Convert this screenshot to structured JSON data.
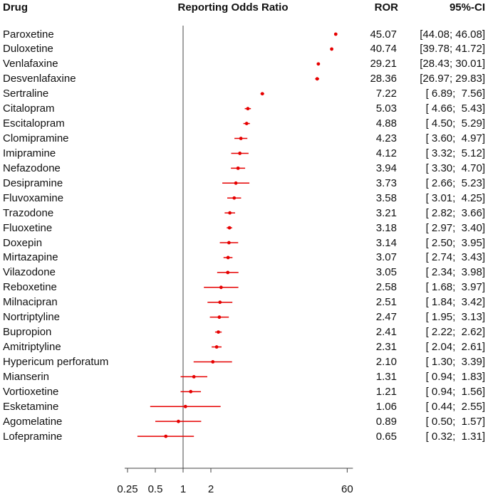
{
  "header": {
    "drug": "Drug",
    "plot": "Reporting Odds Ratio",
    "ror": "ROR",
    "ci": "95%-CI"
  },
  "chart_data": {
    "type": "scatter",
    "subtype": "forest-plot",
    "x_scale": "log",
    "xlim": [
      0.25,
      60
    ],
    "reference_line": 1,
    "marker_color": "#e60000",
    "axis_color": "#444444",
    "x_ticks": [
      {
        "value": 0.25,
        "label": "0.25"
      },
      {
        "value": 0.5,
        "label": "0.5"
      },
      {
        "value": 1,
        "label": "1"
      },
      {
        "value": 2,
        "label": "2"
      },
      {
        "value": 60,
        "label": "60"
      }
    ],
    "rows": [
      {
        "drug": "Paroxetine",
        "ror": 45.07,
        "low": 44.08,
        "high": 46.08,
        "ror_label": "45.07",
        "ci_label": "[44.08; 46.08]"
      },
      {
        "drug": "Duloxetine",
        "ror": 40.74,
        "low": 39.78,
        "high": 41.72,
        "ror_label": "40.74",
        "ci_label": "[39.78; 41.72]"
      },
      {
        "drug": "Venlafaxine",
        "ror": 29.21,
        "low": 28.43,
        "high": 30.01,
        "ror_label": "29.21",
        "ci_label": "[28.43; 30.01]"
      },
      {
        "drug": "Desvenlafaxine",
        "ror": 28.36,
        "low": 26.97,
        "high": 29.83,
        "ror_label": "28.36",
        "ci_label": "[26.97; 29.83]"
      },
      {
        "drug": "Sertraline",
        "ror": 7.22,
        "low": 6.89,
        "high": 7.56,
        "ror_label": "7.22",
        "ci_label": "[ 6.89;  7.56]"
      },
      {
        "drug": "Citalopram",
        "ror": 5.03,
        "low": 4.66,
        "high": 5.43,
        "ror_label": "5.03",
        "ci_label": "[ 4.66;  5.43]"
      },
      {
        "drug": "Escitalopram",
        "ror": 4.88,
        "low": 4.5,
        "high": 5.29,
        "ror_label": "4.88",
        "ci_label": "[ 4.50;  5.29]"
      },
      {
        "drug": "Clomipramine",
        "ror": 4.23,
        "low": 3.6,
        "high": 4.97,
        "ror_label": "4.23",
        "ci_label": "[ 3.60;  4.97]"
      },
      {
        "drug": "Imipramine",
        "ror": 4.12,
        "low": 3.32,
        "high": 5.12,
        "ror_label": "4.12",
        "ci_label": "[ 3.32;  5.12]"
      },
      {
        "drug": "Nefazodone",
        "ror": 3.94,
        "low": 3.3,
        "high": 4.7,
        "ror_label": "3.94",
        "ci_label": "[ 3.30;  4.70]"
      },
      {
        "drug": "Desipramine",
        "ror": 3.73,
        "low": 2.66,
        "high": 5.23,
        "ror_label": "3.73",
        "ci_label": "[ 2.66;  5.23]"
      },
      {
        "drug": "Fluvoxamine",
        "ror": 3.58,
        "low": 3.01,
        "high": 4.25,
        "ror_label": "3.58",
        "ci_label": "[ 3.01;  4.25]"
      },
      {
        "drug": "Trazodone",
        "ror": 3.21,
        "low": 2.82,
        "high": 3.66,
        "ror_label": "3.21",
        "ci_label": "[ 2.82;  3.66]"
      },
      {
        "drug": "Fluoxetine",
        "ror": 3.18,
        "low": 2.97,
        "high": 3.4,
        "ror_label": "3.18",
        "ci_label": "[ 2.97;  3.40]"
      },
      {
        "drug": "Doxepin",
        "ror": 3.14,
        "low": 2.5,
        "high": 3.95,
        "ror_label": "3.14",
        "ci_label": "[ 2.50;  3.95]"
      },
      {
        "drug": "Mirtazapine",
        "ror": 3.07,
        "low": 2.74,
        "high": 3.43,
        "ror_label": "3.07",
        "ci_label": "[ 2.74;  3.43]"
      },
      {
        "drug": "Vilazodone",
        "ror": 3.05,
        "low": 2.34,
        "high": 3.98,
        "ror_label": "3.05",
        "ci_label": "[ 2.34;  3.98]"
      },
      {
        "drug": "Reboxetine",
        "ror": 2.58,
        "low": 1.68,
        "high": 3.97,
        "ror_label": "2.58",
        "ci_label": "[ 1.68;  3.97]"
      },
      {
        "drug": "Milnacipran",
        "ror": 2.51,
        "low": 1.84,
        "high": 3.42,
        "ror_label": "2.51",
        "ci_label": "[ 1.84;  3.42]"
      },
      {
        "drug": "Nortriptyline",
        "ror": 2.47,
        "low": 1.95,
        "high": 3.13,
        "ror_label": "2.47",
        "ci_label": "[ 1.95;  3.13]"
      },
      {
        "drug": "Bupropion",
        "ror": 2.41,
        "low": 2.22,
        "high": 2.62,
        "ror_label": "2.41",
        "ci_label": "[ 2.22;  2.62]"
      },
      {
        "drug": "Amitriptyline",
        "ror": 2.31,
        "low": 2.04,
        "high": 2.61,
        "ror_label": "2.31",
        "ci_label": "[ 2.04;  2.61]"
      },
      {
        "drug": "Hypericum perforatum",
        "ror": 2.1,
        "low": 1.3,
        "high": 3.39,
        "ror_label": "2.10",
        "ci_label": "[ 1.30;  3.39]"
      },
      {
        "drug": "Mianserin",
        "ror": 1.31,
        "low": 0.94,
        "high": 1.83,
        "ror_label": "1.31",
        "ci_label": "[ 0.94;  1.83]"
      },
      {
        "drug": "Vortioxetine",
        "ror": 1.21,
        "low": 0.94,
        "high": 1.56,
        "ror_label": "1.21",
        "ci_label": "[ 0.94;  1.56]"
      },
      {
        "drug": "Esketamine",
        "ror": 1.06,
        "low": 0.44,
        "high": 2.55,
        "ror_label": "1.06",
        "ci_label": "[ 0.44;  2.55]"
      },
      {
        "drug": "Agomelatine",
        "ror": 0.89,
        "low": 0.5,
        "high": 1.57,
        "ror_label": "0.89",
        "ci_label": "[ 0.50;  1.57]"
      },
      {
        "drug": "Lofepramine",
        "ror": 0.65,
        "low": 0.32,
        "high": 1.31,
        "ror_label": "0.65",
        "ci_label": "[ 0.32;  1.31]"
      }
    ]
  }
}
